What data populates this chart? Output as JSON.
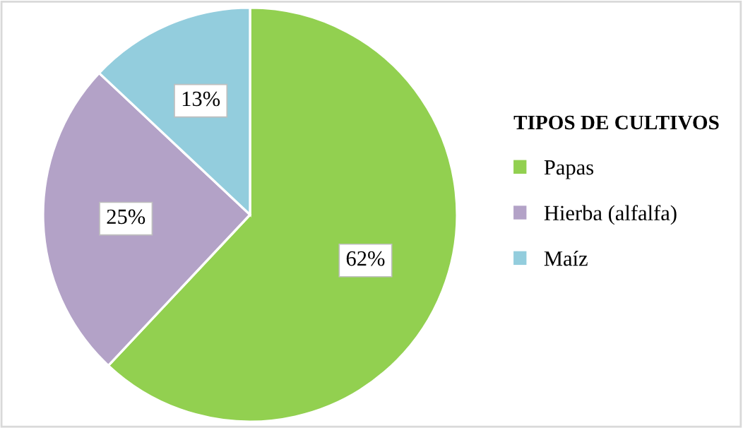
{
  "chart_data": {
    "type": "pie",
    "legend_title": "TIPOS DE CULTIVOS",
    "categories": [
      "Papas",
      "Hierba (alfalfa)",
      "Maíz"
    ],
    "values": [
      62,
      25,
      13
    ],
    "colors": [
      "#92d050",
      "#b3a2c7",
      "#93cddd"
    ],
    "value_labels": [
      "62%",
      "25%",
      "13%"
    ],
    "legend": "right"
  }
}
